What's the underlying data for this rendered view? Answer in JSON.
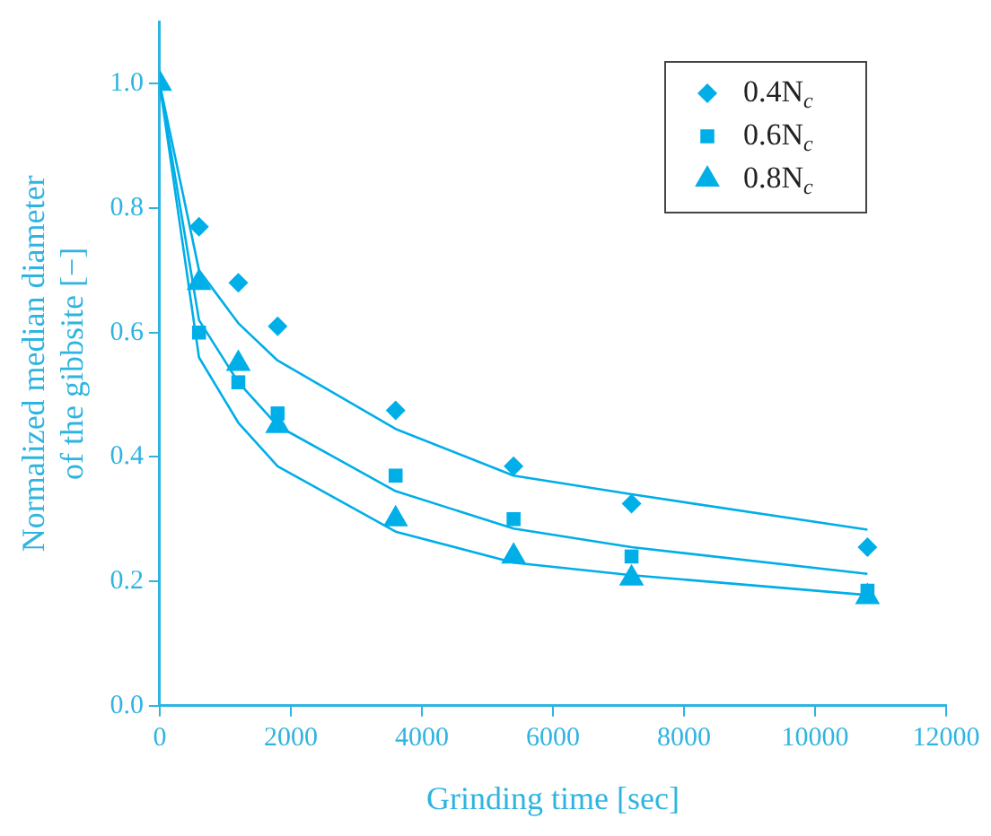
{
  "chart_data": {
    "type": "scatter",
    "xlabel": "Grinding time [sec]",
    "ylabel": "Normalized median diameter of the gibbsite [−]",
    "x": [
      0,
      600,
      1200,
      1800,
      3600,
      5400,
      7200,
      10800
    ],
    "series": [
      {
        "name": "0.4N$_{c}$",
        "color": "#00aee8",
        "marker": "diamond",
        "values": [
          null,
          0.77,
          0.68,
          0.61,
          0.475,
          0.385,
          0.325,
          0.255
        ]
      },
      {
        "name": "0.6N$_{c}$",
        "color": "#00aee8",
        "marker": "square",
        "values": [
          null,
          0.6,
          0.52,
          0.47,
          0.37,
          0.3,
          0.24,
          0.185
        ]
      },
      {
        "name": "0.8N$_{c}$",
        "color": "#00aee8",
        "marker": "triangle",
        "values": [
          1.0,
          0.68,
          0.55,
          0.45,
          0.3,
          0.24,
          0.205,
          0.175
        ]
      },
      {
        "type": "line",
        "color": "#00aee8",
        "marker": "none",
        "values": [
          1.0,
          0.7,
          0.615,
          0.555,
          0.445,
          0.37,
          0.34,
          0.283
        ]
      },
      {
        "type": "line",
        "color": "#00aee8",
        "marker": "none",
        "values": [
          1.0,
          0.62,
          0.52,
          0.45,
          0.345,
          0.285,
          0.255,
          0.212
        ]
      },
      {
        "type": "line",
        "color": "#00aee8",
        "marker": "none",
        "values": [
          1.0,
          0.56,
          0.455,
          0.385,
          0.28,
          0.23,
          0.21,
          0.178
        ]
      }
    ],
    "xlim": [
      0,
      12000
    ],
    "xticks": [
      0,
      2000,
      4000,
      6000,
      8000,
      10000,
      12000
    ],
    "ylim": [
      0,
      1.1
    ],
    "yticks": [
      {
        "value": 0,
        "label": "0.0"
      },
      0.2,
      0.4,
      0.6,
      0.8,
      {
        "value": 1,
        "label": "1.0"
      }
    ],
    "grid": false,
    "legend": "top right"
  }
}
